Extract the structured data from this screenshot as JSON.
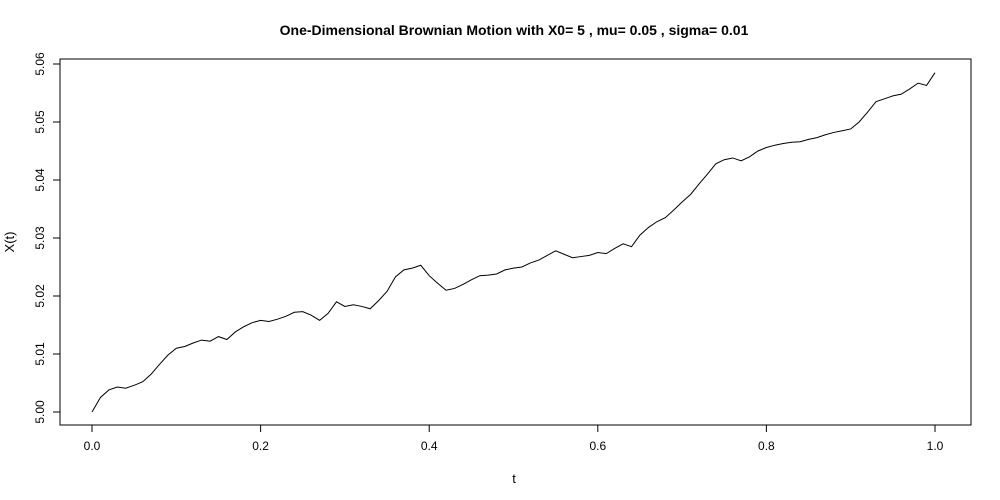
{
  "chart_data": {
    "type": "line",
    "title": "One-Dimensional Brownian Motion with X0= 5 , mu= 0.05 , sigma= 0.01",
    "xlabel": "t",
    "ylabel": "X(t)",
    "xlim": [
      0.0,
      1.0
    ],
    "ylim": [
      5.0,
      5.06
    ],
    "xticks": [
      0.0,
      0.2,
      0.4,
      0.6,
      0.8,
      1.0
    ],
    "xtick_labels": [
      "0.0",
      "0.2",
      "0.4",
      "0.6",
      "0.8",
      "1.0"
    ],
    "yticks": [
      5.0,
      5.01,
      5.02,
      5.03,
      5.04,
      5.05,
      5.06
    ],
    "ytick_labels": [
      "5.00",
      "5.01",
      "5.02",
      "5.03",
      "5.04",
      "5.05",
      "5.06"
    ],
    "grid": false,
    "series": [
      {
        "color": "#000000",
        "x": [
          0.0,
          0.01,
          0.02,
          0.03,
          0.04,
          0.05,
          0.06,
          0.07,
          0.08,
          0.09,
          0.1,
          0.11,
          0.12,
          0.13,
          0.14,
          0.15,
          0.16,
          0.17,
          0.18,
          0.19,
          0.2,
          0.21,
          0.22,
          0.23,
          0.24,
          0.25,
          0.26,
          0.27,
          0.28,
          0.29,
          0.3,
          0.31,
          0.32,
          0.33,
          0.34,
          0.35,
          0.36,
          0.37,
          0.38,
          0.39,
          0.4,
          0.41,
          0.42,
          0.43,
          0.44,
          0.45,
          0.46,
          0.47,
          0.48,
          0.49,
          0.5,
          0.51,
          0.52,
          0.53,
          0.54,
          0.55,
          0.56,
          0.57,
          0.58,
          0.59,
          0.6,
          0.61,
          0.62,
          0.63,
          0.64,
          0.65,
          0.66,
          0.67,
          0.68,
          0.69,
          0.7,
          0.71,
          0.72,
          0.73,
          0.74,
          0.75,
          0.76,
          0.77,
          0.78,
          0.79,
          0.8,
          0.81,
          0.82,
          0.83,
          0.84,
          0.85,
          0.86,
          0.87,
          0.88,
          0.89,
          0.9,
          0.91,
          0.92,
          0.93,
          0.94,
          0.95,
          0.96,
          0.97,
          0.98,
          0.99,
          1.0
        ],
        "values": [
          5.0,
          5.0025,
          5.0038,
          5.0043,
          5.0041,
          5.0046,
          5.0052,
          5.0065,
          5.0082,
          5.0098,
          5.011,
          5.0113,
          5.0119,
          5.0124,
          5.0122,
          5.013,
          5.0125,
          5.0138,
          5.0147,
          5.0154,
          5.0158,
          5.0156,
          5.016,
          5.0165,
          5.0172,
          5.0173,
          5.0167,
          5.0158,
          5.017,
          5.019,
          5.0182,
          5.0185,
          5.0182,
          5.0178,
          5.0192,
          5.0208,
          5.0233,
          5.0245,
          5.0248,
          5.0253,
          5.0235,
          5.0222,
          5.021,
          5.0213,
          5.022,
          5.0228,
          5.0235,
          5.0236,
          5.0238,
          5.0245,
          5.0248,
          5.025,
          5.0257,
          5.0262,
          5.027,
          5.0278,
          5.0272,
          5.0266,
          5.0268,
          5.027,
          5.0275,
          5.0273,
          5.0282,
          5.029,
          5.0285,
          5.0305,
          5.0318,
          5.0328,
          5.0335,
          5.0348,
          5.0362,
          5.0375,
          5.0393,
          5.041,
          5.0428,
          5.0435,
          5.0438,
          5.0433,
          5.044,
          5.045,
          5.0456,
          5.046,
          5.0463,
          5.0465,
          5.0466,
          5.047,
          5.0473,
          5.0478,
          5.0482,
          5.0485,
          5.0488,
          5.05,
          5.0517,
          5.0535,
          5.054,
          5.0545,
          5.0548,
          5.0557,
          5.0567,
          5.0563,
          5.0585
        ]
      }
    ]
  }
}
